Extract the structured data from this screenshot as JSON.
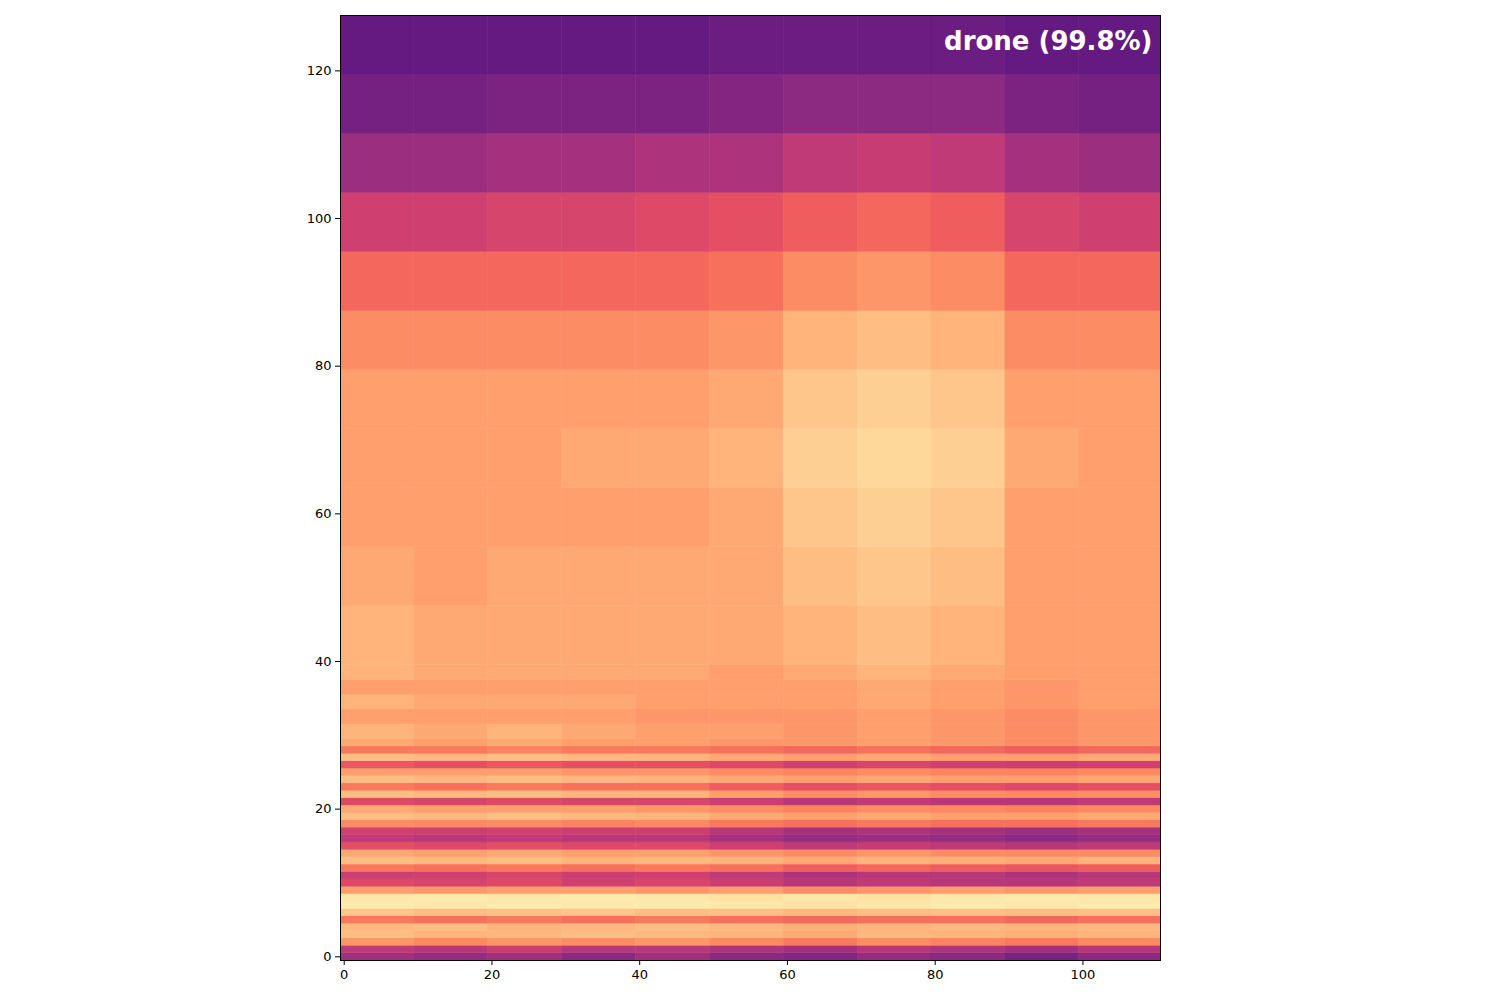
{
  "chart_data": {
    "type": "heatmap",
    "annotation": "drone (99.8%)",
    "color": "magma",
    "color_range": [
      0,
      1
    ],
    "xlim": [
      -0.5,
      110.5
    ],
    "ylim": [
      -0.5,
      127.5
    ],
    "xticks": [
      0,
      20,
      40,
      60,
      80,
      100
    ],
    "yticks": [
      0,
      20,
      40,
      60,
      80,
      100,
      120
    ],
    "x_edges": [
      -0.5,
      9.5,
      19.5,
      29.5,
      39.5,
      49.5,
      59.5,
      69.5,
      79.5,
      89.5,
      99.5,
      110.5
    ],
    "y_edges": [
      -0.5,
      0.5,
      1.5,
      2.5,
      3.5,
      4.5,
      5.5,
      6.5,
      7.5,
      8.5,
      9.5,
      10.5,
      11.5,
      12.5,
      13.5,
      14.5,
      15.5,
      16.5,
      17.5,
      18.5,
      19.5,
      20.5,
      21.5,
      22.5,
      23.5,
      24.5,
      25.5,
      26.5,
      27.5,
      28.5,
      29.5,
      31.5,
      33.5,
      35.5,
      37.5,
      39.5,
      47.5,
      55.5,
      63.5,
      71.5,
      79.5,
      87.5,
      95.5,
      103.5,
      111.5,
      119.5,
      127.5
    ],
    "cells": [
      [
        0.45,
        0.42,
        0.45,
        0.4,
        0.45,
        0.4,
        0.38,
        0.42,
        0.4,
        0.35,
        0.4
      ],
      [
        0.52,
        0.5,
        0.55,
        0.5,
        0.5,
        0.48,
        0.45,
        0.5,
        0.48,
        0.45,
        0.5
      ],
      [
        0.78,
        0.75,
        0.78,
        0.76,
        0.78,
        0.75,
        0.72,
        0.76,
        0.74,
        0.72,
        0.75
      ],
      [
        0.86,
        0.84,
        0.85,
        0.86,
        0.85,
        0.84,
        0.82,
        0.85,
        0.84,
        0.83,
        0.84
      ],
      [
        0.85,
        0.86,
        0.84,
        0.85,
        0.86,
        0.85,
        0.83,
        0.84,
        0.85,
        0.84,
        0.85
      ],
      [
        0.72,
        0.7,
        0.72,
        0.7,
        0.72,
        0.7,
        0.68,
        0.7,
        0.7,
        0.68,
        0.7
      ],
      [
        0.88,
        0.86,
        0.87,
        0.88,
        0.86,
        0.87,
        0.85,
        0.86,
        0.87,
        0.86,
        0.87
      ],
      [
        0.96,
        0.95,
        0.96,
        0.95,
        0.96,
        0.95,
        0.94,
        0.95,
        0.96,
        0.95,
        0.96
      ],
      [
        0.95,
        0.96,
        0.95,
        0.96,
        0.95,
        0.94,
        0.95,
        0.94,
        0.95,
        0.96,
        0.95
      ],
      [
        0.8,
        0.78,
        0.8,
        0.8,
        0.78,
        0.8,
        0.76,
        0.78,
        0.8,
        0.78,
        0.8
      ],
      [
        0.6,
        0.58,
        0.6,
        0.56,
        0.58,
        0.55,
        0.5,
        0.52,
        0.5,
        0.5,
        0.52
      ],
      [
        0.55,
        0.56,
        0.58,
        0.55,
        0.56,
        0.52,
        0.48,
        0.5,
        0.5,
        0.48,
        0.5
      ],
      [
        0.72,
        0.7,
        0.72,
        0.7,
        0.72,
        0.7,
        0.66,
        0.68,
        0.66,
        0.64,
        0.66
      ],
      [
        0.86,
        0.85,
        0.86,
        0.84,
        0.85,
        0.84,
        0.82,
        0.84,
        0.83,
        0.82,
        0.84
      ],
      [
        0.82,
        0.8,
        0.82,
        0.8,
        0.8,
        0.78,
        0.76,
        0.78,
        0.76,
        0.75,
        0.76
      ],
      [
        0.62,
        0.6,
        0.62,
        0.6,
        0.6,
        0.56,
        0.52,
        0.54,
        0.52,
        0.5,
        0.52
      ],
      [
        0.52,
        0.5,
        0.52,
        0.5,
        0.5,
        0.46,
        0.42,
        0.44,
        0.42,
        0.4,
        0.42
      ],
      [
        0.56,
        0.55,
        0.56,
        0.55,
        0.55,
        0.5,
        0.46,
        0.48,
        0.46,
        0.44,
        0.46
      ],
      [
        0.76,
        0.75,
        0.76,
        0.74,
        0.75,
        0.72,
        0.7,
        0.72,
        0.7,
        0.7,
        0.72
      ],
      [
        0.86,
        0.85,
        0.86,
        0.85,
        0.84,
        0.82,
        0.8,
        0.82,
        0.8,
        0.8,
        0.82
      ],
      [
        0.82,
        0.8,
        0.8,
        0.8,
        0.78,
        0.76,
        0.74,
        0.76,
        0.75,
        0.74,
        0.75
      ],
      [
        0.6,
        0.58,
        0.6,
        0.58,
        0.58,
        0.55,
        0.5,
        0.52,
        0.5,
        0.5,
        0.52
      ],
      [
        0.86,
        0.85,
        0.86,
        0.84,
        0.84,
        0.8,
        0.76,
        0.78,
        0.76,
        0.75,
        0.76
      ],
      [
        0.72,
        0.7,
        0.72,
        0.7,
        0.7,
        0.66,
        0.62,
        0.64,
        0.62,
        0.6,
        0.62
      ],
      [
        0.86,
        0.85,
        0.86,
        0.85,
        0.84,
        0.82,
        0.8,
        0.82,
        0.8,
        0.8,
        0.82
      ],
      [
        0.8,
        0.8,
        0.8,
        0.78,
        0.78,
        0.76,
        0.74,
        0.76,
        0.74,
        0.74,
        0.75
      ],
      [
        0.64,
        0.62,
        0.64,
        0.62,
        0.62,
        0.6,
        0.56,
        0.58,
        0.56,
        0.55,
        0.56
      ],
      [
        0.86,
        0.85,
        0.86,
        0.85,
        0.84,
        0.82,
        0.8,
        0.82,
        0.8,
        0.8,
        0.82
      ],
      [
        0.72,
        0.72,
        0.74,
        0.72,
        0.72,
        0.7,
        0.68,
        0.7,
        0.68,
        0.66,
        0.68
      ],
      [
        0.82,
        0.8,
        0.82,
        0.8,
        0.8,
        0.78,
        0.78,
        0.8,
        0.78,
        0.76,
        0.78
      ],
      [
        0.84,
        0.82,
        0.84,
        0.82,
        0.8,
        0.8,
        0.78,
        0.8,
        0.78,
        0.76,
        0.78
      ],
      [
        0.8,
        0.8,
        0.8,
        0.8,
        0.78,
        0.78,
        0.78,
        0.8,
        0.78,
        0.76,
        0.78
      ],
      [
        0.84,
        0.82,
        0.82,
        0.82,
        0.8,
        0.8,
        0.8,
        0.82,
        0.8,
        0.78,
        0.8
      ],
      [
        0.8,
        0.8,
        0.8,
        0.8,
        0.8,
        0.8,
        0.8,
        0.82,
        0.8,
        0.78,
        0.8
      ],
      [
        0.84,
        0.82,
        0.82,
        0.82,
        0.82,
        0.8,
        0.82,
        0.84,
        0.82,
        0.8,
        0.8
      ],
      [
        0.84,
        0.82,
        0.82,
        0.82,
        0.82,
        0.82,
        0.84,
        0.86,
        0.84,
        0.8,
        0.8
      ],
      [
        0.82,
        0.8,
        0.82,
        0.82,
        0.82,
        0.82,
        0.86,
        0.88,
        0.86,
        0.8,
        0.8
      ],
      [
        0.8,
        0.8,
        0.8,
        0.8,
        0.8,
        0.82,
        0.88,
        0.9,
        0.88,
        0.8,
        0.8
      ],
      [
        0.8,
        0.8,
        0.8,
        0.82,
        0.82,
        0.84,
        0.9,
        0.92,
        0.9,
        0.82,
        0.8
      ],
      [
        0.8,
        0.8,
        0.8,
        0.8,
        0.8,
        0.82,
        0.88,
        0.9,
        0.88,
        0.8,
        0.8
      ],
      [
        0.76,
        0.76,
        0.76,
        0.76,
        0.76,
        0.78,
        0.84,
        0.86,
        0.84,
        0.76,
        0.76
      ],
      [
        0.68,
        0.68,
        0.68,
        0.68,
        0.68,
        0.7,
        0.76,
        0.78,
        0.76,
        0.68,
        0.68
      ],
      [
        0.56,
        0.56,
        0.58,
        0.58,
        0.6,
        0.62,
        0.66,
        0.68,
        0.66,
        0.58,
        0.56
      ],
      [
        0.44,
        0.44,
        0.46,
        0.46,
        0.48,
        0.48,
        0.52,
        0.54,
        0.52,
        0.46,
        0.44
      ],
      [
        0.34,
        0.34,
        0.36,
        0.36,
        0.36,
        0.38,
        0.4,
        0.4,
        0.4,
        0.36,
        0.34
      ],
      [
        0.3,
        0.3,
        0.3,
        0.3,
        0.3,
        0.32,
        0.32,
        0.32,
        0.32,
        0.3,
        0.3
      ]
    ]
  }
}
